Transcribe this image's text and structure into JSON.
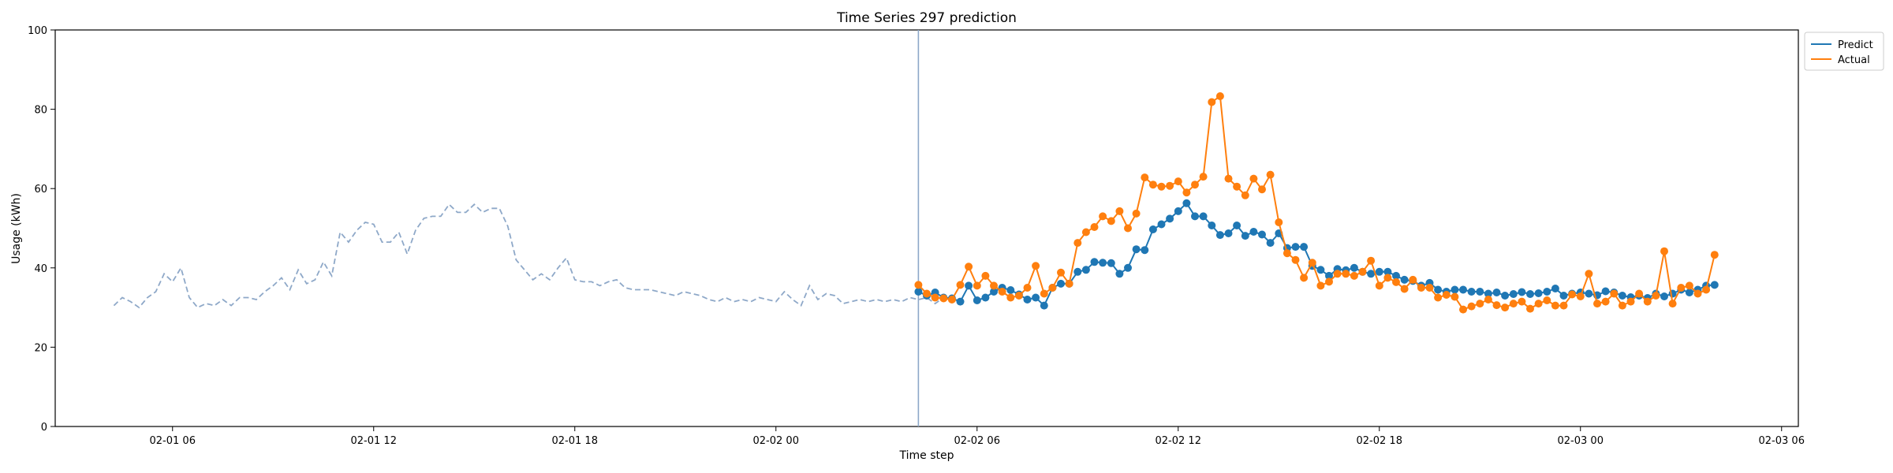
{
  "chart_data": {
    "type": "line",
    "title": "Time Series 297 prediction",
    "xlabel": "Time step",
    "ylabel": "Usage (kWh)",
    "ylim": [
      0,
      100
    ],
    "xlim": [
      "2025-02-01 02:30",
      "2025-02-03 06:30"
    ],
    "x_ticks": [
      {
        "t": "2025-02-01 06:00",
        "label": "02-01 06"
      },
      {
        "t": "2025-02-01 12:00",
        "label": "02-01 12"
      },
      {
        "t": "2025-02-01 18:00",
        "label": "02-01 18"
      },
      {
        "t": "2025-02-02 00:00",
        "label": "02-02 00"
      },
      {
        "t": "2025-02-02 06:00",
        "label": "02-02 06"
      },
      {
        "t": "2025-02-02 12:00",
        "label": "02-02 12"
      },
      {
        "t": "2025-02-02 18:00",
        "label": "02-02 18"
      },
      {
        "t": "2025-02-03 00:00",
        "label": "02-03 00"
      },
      {
        "t": "2025-02-03 06:00",
        "label": "02-03 06"
      }
    ],
    "y_ticks": [
      0,
      20,
      40,
      60,
      80,
      100
    ],
    "forecast_start": "2025-02-02 04:15",
    "history": {
      "start": "2025-02-01 04:15",
      "step_minutes": 15,
      "color": "#8ea8c8",
      "values": [
        30.5,
        32.5,
        31.5,
        30,
        32.5,
        34,
        38.5,
        36.5,
        40,
        32.5,
        30,
        31,
        30.5,
        32,
        30.5,
        32.5,
        32.5,
        32,
        34,
        35.5,
        37.5,
        34.5,
        39.5,
        36,
        37,
        41.5,
        38,
        49,
        46.5,
        49.5,
        51.5,
        51,
        46.5,
        46.5,
        49,
        43.5,
        49.5,
        52.5,
        53,
        53,
        56,
        54,
        54,
        56,
        54,
        55,
        55,
        50.5,
        42,
        39.5,
        37,
        38.5,
        37,
        40,
        42.5,
        37,
        36.5,
        36.5,
        35.5,
        36.5,
        37,
        35,
        34.5,
        34.5,
        34.5,
        34,
        33.5,
        33,
        34,
        33.5,
        33,
        32,
        31.5,
        32.5,
        31.5,
        32,
        31.5,
        32.5,
        32,
        31.5,
        34,
        32,
        30.5,
        35.5,
        32,
        33.5,
        33,
        31,
        31.5,
        32,
        31.5,
        32,
        31.5,
        32,
        31.5,
        32.5,
        32,
        32.5,
        31,
        32.5,
        33
      ]
    },
    "series": [
      {
        "name": "Predict",
        "color": "#1f77b4",
        "start": "2025-02-02 04:15",
        "step_minutes": 15,
        "values": [
          34,
          33,
          33.8,
          32.5,
          32.3,
          31.5,
          35.5,
          31.8,
          32.5,
          34,
          35,
          34.4,
          33.3,
          32,
          32.5,
          30.5,
          35,
          36,
          36,
          39,
          39.5,
          41.5,
          41.3,
          41.2,
          38.5,
          40,
          44.7,
          44.5,
          49.7,
          51,
          52.4,
          54.3,
          56.3,
          53,
          53,
          50.7,
          48.3,
          48.7,
          50.7,
          48.1,
          49.1,
          48.4,
          46.3,
          48.7,
          45,
          45.3,
          45.3,
          40.5,
          39.5,
          38,
          39.7,
          39.4,
          40,
          39,
          38.5,
          39,
          39,
          38,
          37,
          36.7,
          35.5,
          36.2,
          34.5,
          34,
          34.5,
          34.5,
          34,
          34,
          33.5,
          33.8,
          33,
          33.4,
          33.9,
          33.4,
          33.6,
          34,
          34.8,
          33,
          33.5,
          33.8,
          33.5,
          33.1,
          34.1,
          33.8,
          33,
          32.6,
          33,
          32.4,
          33.5,
          32.8,
          33.5,
          34.5,
          33.8,
          34.5,
          35.5,
          35.7
        ]
      },
      {
        "name": "Actual",
        "color": "#ff7f0e",
        "start": "2025-02-02 04:15",
        "step_minutes": 15,
        "values": [
          35.7,
          33.5,
          32.5,
          32.3,
          32,
          35.7,
          40.3,
          35.5,
          38,
          35.5,
          34,
          32.5,
          33,
          35,
          40.5,
          33.5,
          35,
          38.8,
          36,
          46.3,
          49,
          50.3,
          53,
          51.8,
          54.3,
          50,
          53.7,
          62.8,
          61,
          60.5,
          60.7,
          61.8,
          59,
          61,
          63,
          81.8,
          83.3,
          62.5,
          60.5,
          58.3,
          62.5,
          59.8,
          63.5,
          51.5,
          43.7,
          42,
          37.5,
          41.3,
          35.5,
          36.5,
          38.5,
          38.5,
          38,
          39,
          41.8,
          35.5,
          37.5,
          36.4,
          34.7,
          37,
          35,
          35,
          32.5,
          33.2,
          32.7,
          29.5,
          30.3,
          31,
          32,
          30.6,
          30,
          31,
          31.5,
          29.7,
          31,
          31.8,
          30.5,
          30.5,
          33.3,
          32.8,
          38.5,
          31,
          31.5,
          33.5,
          30.5,
          31.5,
          33.5,
          31.5,
          33,
          44.2,
          31,
          35,
          35.5,
          33.5,
          34.5,
          43.3
        ]
      }
    ],
    "legend": {
      "position": "top-right",
      "entries": [
        "Predict",
        "Actual"
      ]
    },
    "grid": false
  }
}
